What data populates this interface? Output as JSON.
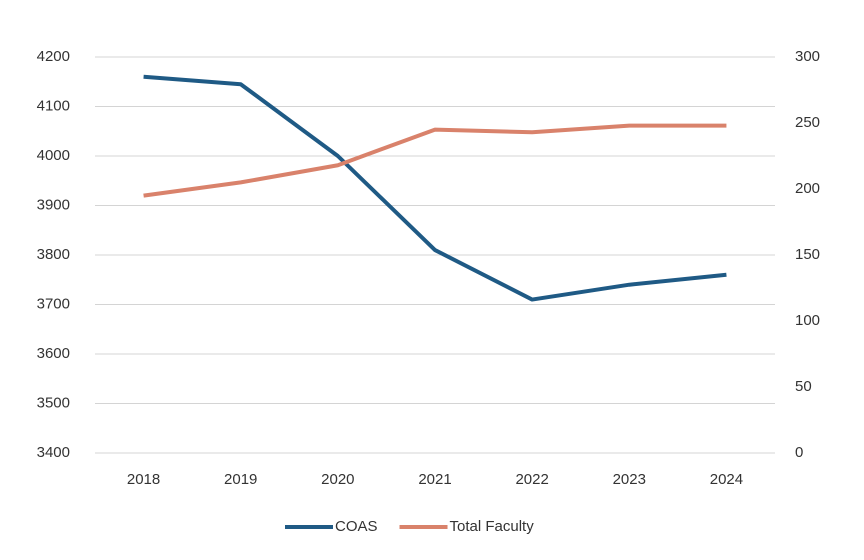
{
  "chart_data": {
    "type": "line",
    "categories": [
      "2018",
      "2019",
      "2020",
      "2021",
      "2022",
      "2023",
      "2024"
    ],
    "series": [
      {
        "name": "COAS",
        "color": "#1f5a85",
        "values": [
          4160,
          4145,
          4000,
          3810,
          3710,
          3740,
          3760
        ]
      },
      {
        "name": "Total Faculty",
        "color": "#d9826b",
        "axis": "y2",
        "values": [
          195,
          205,
          218,
          245,
          243,
          248,
          248
        ]
      }
    ],
    "ylim": [
      3400,
      4200
    ],
    "yticks": [
      3400,
      3500,
      3600,
      3700,
      3800,
      3900,
      4000,
      4100,
      4200
    ],
    "y2lim": [
      0,
      300
    ],
    "y2ticks": [
      0,
      50,
      100,
      150,
      200,
      250,
      300
    ],
    "grid": true,
    "legend": "bottom"
  }
}
